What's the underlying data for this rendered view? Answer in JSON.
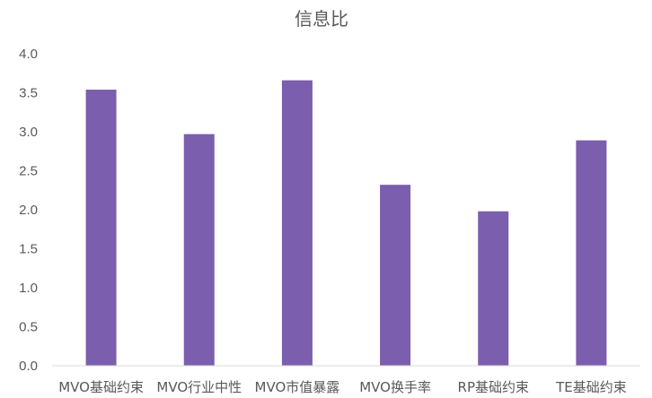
{
  "chart_data": {
    "type": "bar",
    "title": "信息比",
    "xlabel": "",
    "ylabel": "",
    "categories": [
      "MVO基础约束",
      "MVO行业中性",
      "MVO市值暴露",
      "MVO换手率",
      "RP基础约束",
      "TE基础约束"
    ],
    "values": [
      3.54,
      2.97,
      3.66,
      2.32,
      1.98,
      2.89
    ],
    "ylim": [
      0,
      4.0
    ],
    "yticks": [
      "0.0",
      "0.5",
      "1.0",
      "1.5",
      "2.0",
      "2.5",
      "3.0",
      "3.5",
      "4.0"
    ],
    "bar_color": "#7B5EAD",
    "grid": false,
    "legend": false
  }
}
